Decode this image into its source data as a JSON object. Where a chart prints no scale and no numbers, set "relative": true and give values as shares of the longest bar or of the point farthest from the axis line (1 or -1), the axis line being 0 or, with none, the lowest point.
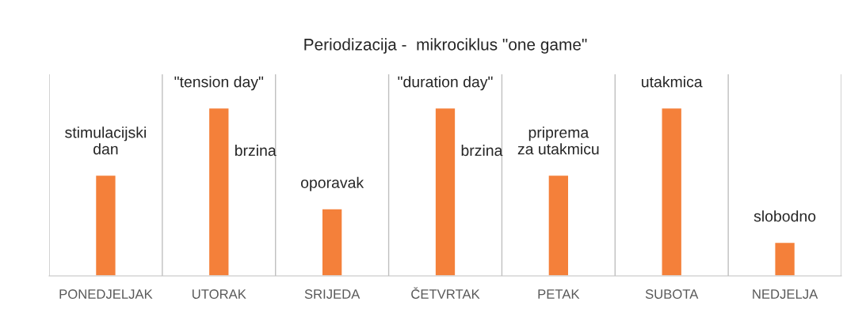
{
  "chart_data": {
    "type": "bar",
    "title": "Periodizacija -  mikrociklus \"one game\"",
    "categories": [
      "PONEDJELJAK",
      "UTORAK",
      "SRIJEDA",
      "ČETVRTAK",
      "PETAK",
      "SUBOTA",
      "NEDJELJA"
    ],
    "values": [
      0.6,
      1,
      0.4,
      1,
      0.6,
      1,
      0.2
    ],
    "color": "#f4803a",
    "relative": true,
    "grid": "x",
    "annotations": [
      {
        "text": "stimulacijski\ndan",
        "x": "PONEDJELJAK",
        "y": 0.6
      },
      {
        "text": "\"tension day\"",
        "x": "UTORAK",
        "y": 1
      },
      {
        "text": "brzina",
        "x": "UTORAK",
        "y": 1
      },
      {
        "text": "oporavak",
        "x": "SRIJEDA",
        "y": 0.4
      },
      {
        "text": "\"duration day\"",
        "x": "ČETVRTAK",
        "y": 1
      },
      {
        "text": "brzina",
        "x": "ČETVRTAK",
        "y": 1
      },
      {
        "text": "priprema\nza utakmicu",
        "x": "PETAK",
        "y": 0.6
      },
      {
        "text": "utakmica",
        "x": "SUBOTA",
        "y": 1
      },
      {
        "text": "slobodno",
        "x": "NEDJELJA",
        "y": 0.2
      }
    ]
  }
}
